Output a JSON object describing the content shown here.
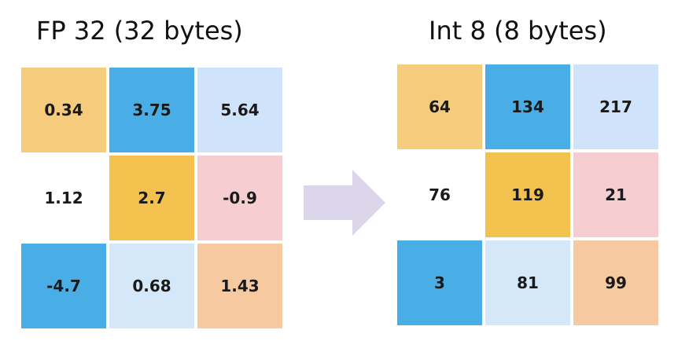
{
  "left_panel": {
    "title": "FP 32 (32 bytes)",
    "cells": [
      {
        "value": "0.34",
        "color": "#F5CB7C"
      },
      {
        "value": "3.75",
        "color": "#4AAEE6"
      },
      {
        "value": "5.64",
        "color": "#CFE4FA"
      },
      {
        "value": "1.12",
        "color": "#FFFFFF"
      },
      {
        "value": "2.7",
        "color": "#F3C14E"
      },
      {
        "value": "-0.9",
        "color": "#F6CDD0"
      },
      {
        "value": "-4.7",
        "color": "#4AAEE6"
      },
      {
        "value": "0.68",
        "color": "#D5E8FA"
      },
      {
        "value": "1.43",
        "color": "#F6C9A0"
      }
    ]
  },
  "right_panel": {
    "title": "Int 8 (8 bytes)",
    "cells": [
      {
        "value": "64",
        "color": "#F5CB7C"
      },
      {
        "value": "134",
        "color": "#4AAEE6"
      },
      {
        "value": "217",
        "color": "#CFE4FA"
      },
      {
        "value": "76",
        "color": "#FFFFFF"
      },
      {
        "value": "119",
        "color": "#F3C14E"
      },
      {
        "value": "21",
        "color": "#F6CDD0"
      },
      {
        "value": "3",
        "color": "#4AAEE6"
      },
      {
        "value": "81",
        "color": "#D5E8FA"
      },
      {
        "value": "99",
        "color": "#F6C9A0"
      }
    ]
  },
  "arrow": {
    "icon": "right-arrow-icon",
    "color": "#DCD6EA"
  }
}
